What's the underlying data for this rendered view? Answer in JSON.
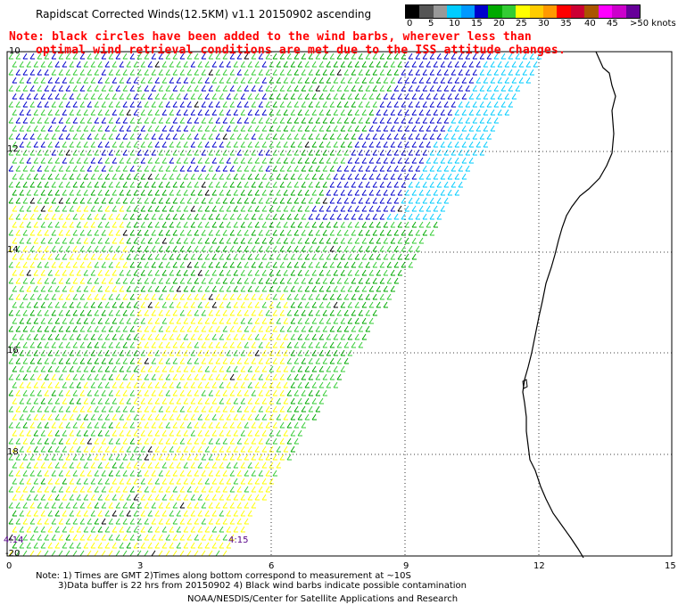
{
  "header": {
    "title": "Rapidscat Corrected Winds(12.5KM) v1.1 20150902 ascending"
  },
  "note": {
    "line1": "Note: black circles have been added to the wind barbs, wherever less than",
    "line2": "optimal wind retrieval conditions are met due to the ISS attitude changes."
  },
  "legend": {
    "colors": [
      "#000000",
      "#555555",
      "#999999",
      "#00ccff",
      "#0099ff",
      "#0000cc",
      "#00aa00",
      "#33cc33",
      "#ffff00",
      "#ffcc00",
      "#ff9900",
      "#ff0000",
      "#cc0033",
      "#aa5500",
      "#ff00ff",
      "#cc00cc",
      "#660099"
    ],
    "labels": [
      "0",
      "5",
      "10",
      "15",
      "20",
      "25",
      "30",
      "35",
      "40",
      "45",
      ">50 knots"
    ]
  },
  "map": {
    "lat_labels": [
      "10",
      "12",
      "14",
      "16",
      "18",
      "-20"
    ],
    "lon_labels": [
      "0",
      "3",
      "6",
      "9",
      "12",
      "15"
    ],
    "time_labels": [
      "4:14",
      "4:15"
    ],
    "colors": {
      "calm": "#ffff00",
      "light": "#00aa00",
      "moderate": "#33cc33",
      "fresh": "#0000cc",
      "strong": "#00ccff",
      "flagged": "#000000",
      "coast": "#000000",
      "grid": "#000000"
    }
  },
  "footer": {
    "line1": "Note: 1) Times are GMT 2)Times along bottom correspond to measurement at ~10S",
    "line2": "3)Data buffer is 22 hrs from 20150902 4) Black wind barbs indicate possible contamination",
    "line3": "NOAA/NESDIS/Center for Satellite Applications and Research"
  }
}
